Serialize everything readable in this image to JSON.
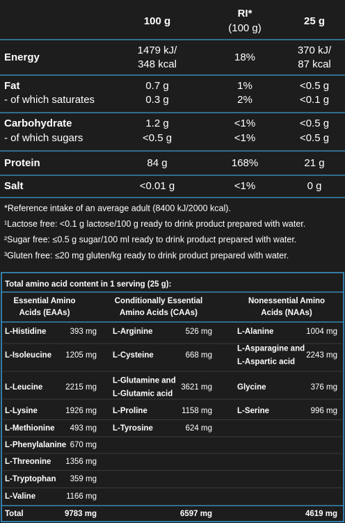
{
  "nutrition": {
    "columns": [
      {
        "label": "100 g"
      },
      {
        "label": "RI*",
        "sub": "(100 g)"
      },
      {
        "label": "25 g"
      }
    ],
    "groups": [
      [
        {
          "label": "Energy",
          "cells": [
            [
              "1479 kJ/",
              "348 kcal"
            ],
            [
              "18%"
            ],
            [
              "370 kJ/",
              "87 kcal"
            ]
          ]
        }
      ],
      [
        {
          "label": "Fat",
          "cells": [
            [
              "0.7 g"
            ],
            [
              "1%"
            ],
            [
              "<0.5 g"
            ]
          ]
        },
        {
          "label": "- of which saturates",
          "cells": [
            [
              "0.3 g"
            ],
            [
              "2%"
            ],
            [
              "<0.1 g"
            ]
          ]
        }
      ],
      [
        {
          "label": "Carbohydrate",
          "cells": [
            [
              "1.2 g"
            ],
            [
              "<1%"
            ],
            [
              "<0.5 g"
            ]
          ]
        },
        {
          "label": "- of which sugars",
          "cells": [
            [
              "<0.5 g"
            ],
            [
              "<1%"
            ],
            [
              "<0.5 g"
            ]
          ]
        }
      ],
      [
        {
          "label": "Protein",
          "cells": [
            [
              "84 g"
            ],
            [
              "168%"
            ],
            [
              "21 g"
            ]
          ]
        }
      ],
      [
        {
          "label": "Salt",
          "cells": [
            [
              "<0.01 g"
            ],
            [
              "<1%"
            ],
            [
              "0 g"
            ]
          ]
        }
      ]
    ]
  },
  "footnotes": [
    "*Reference intake of an average adult (8400 kJ/2000 kcal).",
    "¹Lactose free: <0.1 g lactose/100 g ready to drink product prepared with water.",
    "²Sugar free: ≤0.5 g sugar/100 ml ready to drink product prepared with water.",
    "³Gluten free: ≤20 mg gluten/kg ready to drink product prepared with water."
  ],
  "amino": {
    "title": "Total amino acid content in 1 serving (25 g):",
    "headers": [
      [
        "Essential Amino",
        "Acids (EAAs)"
      ],
      [
        "Conditionally Essential",
        "Amino Acids (CAAs)"
      ],
      [
        "Nonessential Amino",
        "Acids (NAAs)"
      ]
    ],
    "rows": [
      [
        [
          [
            "L-Histidine"
          ],
          "393 mg"
        ],
        [
          [
            "L-Arginine"
          ],
          "526 mg"
        ],
        [
          [
            "L-Alanine"
          ],
          "1004 mg"
        ]
      ],
      [
        [
          [
            "L-Isoleucine"
          ],
          "1205 mg"
        ],
        [
          [
            "L-Cysteine"
          ],
          "668 mg"
        ],
        [
          [
            "L-Asparagine and",
            "L-Aspartic acid"
          ],
          "2243 mg"
        ]
      ],
      [
        [
          [
            "L-Leucine"
          ],
          "2215 mg"
        ],
        [
          [
            "L-Glutamine and",
            "L-Glutamic acid"
          ],
          "3621 mg"
        ],
        [
          [
            "Glycine"
          ],
          "376 mg"
        ]
      ],
      [
        [
          [
            "L-Lysine"
          ],
          "1926 mg"
        ],
        [
          [
            "L-Proline"
          ],
          "1158 mg"
        ],
        [
          [
            "L-Serine"
          ],
          "996 mg"
        ]
      ],
      [
        [
          [
            "L-Methionine"
          ],
          "493 mg"
        ],
        [
          [
            "L-Tyrosine"
          ],
          "624 mg"
        ],
        null
      ],
      [
        [
          [
            "L-Phenylalanine"
          ],
          "670 mg"
        ],
        null,
        null
      ],
      [
        [
          [
            "L-Threonine"
          ],
          "1356 mg"
        ],
        null,
        null
      ],
      [
        [
          [
            "L-Tryptophan"
          ],
          "359 mg"
        ],
        null,
        null
      ],
      [
        [
          [
            "L-Valine"
          ],
          "1166 mg"
        ],
        null,
        null
      ]
    ],
    "total": {
      "label": "Total",
      "values": [
        "9783 mg",
        "6597 mg",
        "4619 mg"
      ]
    }
  }
}
